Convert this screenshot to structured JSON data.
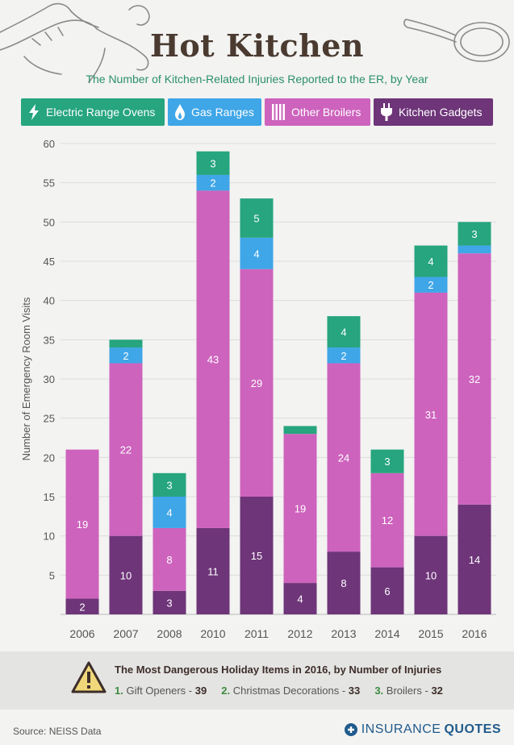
{
  "header": {
    "title": "Hot Kitchen",
    "subtitle": "The Number of Kitchen-Related Injuries Reported to the ER, by Year"
  },
  "legend": [
    {
      "label": "Electric Range Ovens",
      "color": "#26a57e",
      "icon": "lightning-icon"
    },
    {
      "label": "Gas Ranges",
      "color": "#3fa6e8",
      "icon": "flame-icon"
    },
    {
      "label": "Other Broilers",
      "color": "#cd63bd",
      "icon": "grill-bars-icon"
    },
    {
      "label": "Kitchen Gadgets",
      "color": "#6e3579",
      "icon": "plug-icon"
    }
  ],
  "chart_data": {
    "type": "bar",
    "stacked": true,
    "categories": [
      "2006",
      "2007",
      "2008",
      "2010",
      "2011",
      "2012",
      "2013",
      "2014",
      "2015",
      "2016"
    ],
    "series": [
      {
        "name": "Kitchen Gadgets",
        "color": "#6e3579",
        "values": [
          2,
          10,
          3,
          11,
          15,
          4,
          8,
          6,
          10,
          14
        ]
      },
      {
        "name": "Other Broilers",
        "color": "#cd63bd",
        "values": [
          19,
          22,
          8,
          43,
          29,
          19,
          24,
          12,
          31,
          32
        ]
      },
      {
        "name": "Gas Ranges",
        "color": "#3fa6e8",
        "values": [
          0,
          2,
          4,
          2,
          4,
          0,
          2,
          0,
          2,
          1
        ]
      },
      {
        "name": "Electric Range Ovens",
        "color": "#26a57e",
        "values": [
          0,
          1,
          3,
          3,
          5,
          1,
          4,
          3,
          4,
          3
        ]
      }
    ],
    "ylabel": "Number of Emergency Room Visits",
    "ylim": [
      0,
      60
    ],
    "yticks": [
      5,
      10,
      15,
      20,
      25,
      30,
      35,
      40,
      45,
      50,
      55,
      60
    ],
    "grid": true
  },
  "holiday": {
    "title": "The Most Dangerous Holiday Items in 2016, by Number of Injuries",
    "items": [
      {
        "rank": "1.",
        "label": "Gift Openers",
        "value": "39"
      },
      {
        "rank": "2.",
        "label": "Christmas Decorations",
        "value": "33"
      },
      {
        "rank": "3.",
        "label": "Broilers",
        "value": "32"
      }
    ]
  },
  "footer": {
    "source": "Source: NEISS Data",
    "brand_light": "INSURANCE",
    "brand_bold": "QUOTES"
  }
}
